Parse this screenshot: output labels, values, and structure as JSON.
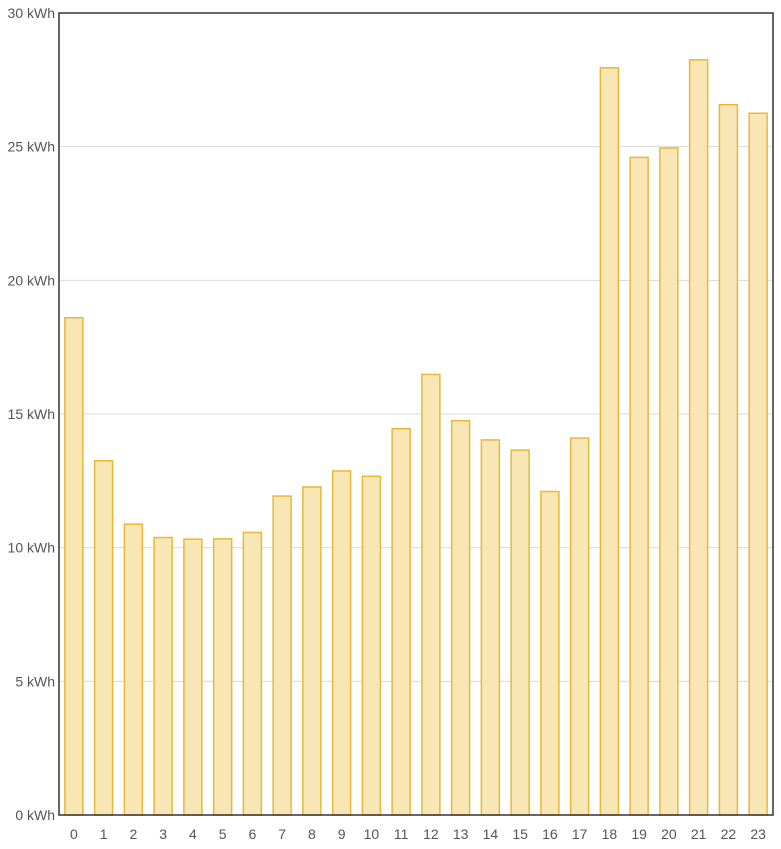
{
  "chart_data": {
    "type": "bar",
    "categories": [
      "0",
      "1",
      "2",
      "3",
      "4",
      "5",
      "6",
      "7",
      "8",
      "9",
      "10",
      "11",
      "12",
      "13",
      "14",
      "15",
      "16",
      "17",
      "18",
      "19",
      "20",
      "21",
      "22",
      "23"
    ],
    "values": [
      18.6,
      13.25,
      10.88,
      10.38,
      10.32,
      10.33,
      10.57,
      11.93,
      12.27,
      12.87,
      12.67,
      14.45,
      16.48,
      14.75,
      14.03,
      13.65,
      12.1,
      14.1,
      27.95,
      24.6,
      24.95,
      28.25,
      26.57,
      26.25
    ],
    "ylim": [
      0,
      30
    ],
    "y_ticks": [
      0,
      5,
      10,
      15,
      20,
      25,
      30
    ],
    "y_tick_labels": [
      "0 kWh",
      "5 kWh",
      "10 kWh",
      "15 kWh",
      "20 kWh",
      "25 kWh",
      "30 kWh"
    ],
    "grid": true,
    "colors": {
      "bar_fill": "#f8e6b4",
      "bar_stroke": "#e8b83a",
      "grid": "#d9d9d9",
      "axis": "#333333"
    }
  }
}
